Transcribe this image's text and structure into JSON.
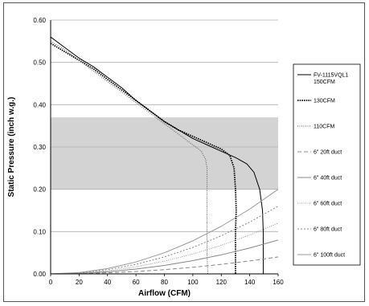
{
  "chart_data": {
    "type": "line",
    "title": "",
    "xlabel": "Airflow (CFM)",
    "ylabel": "Static Pressure (inch w.g.)",
    "xlim": [
      0,
      160
    ],
    "ylim": [
      0,
      0.6
    ],
    "xticks": [
      "0",
      "20",
      "40",
      "60",
      "80",
      "100",
      "120",
      "140",
      "160"
    ],
    "yticks": [
      "0.00",
      "0.10",
      "0.20",
      "0.30",
      "0.40",
      "0.50",
      "0.60"
    ],
    "grid": "horizontal",
    "legend_position": "right",
    "shaded_band": {
      "y_from": 0.2,
      "y_to": 0.37,
      "color": "#d3d3d3"
    },
    "series": [
      {
        "name": "FV-1115VQL1 150CFM",
        "style": "solid",
        "color": "#000000",
        "group": "fan",
        "points": [
          [
            0,
            0.56
          ],
          [
            10,
            0.535
          ],
          [
            20,
            0.51
          ],
          [
            30,
            0.49
          ],
          [
            40,
            0.465
          ],
          [
            50,
            0.44
          ],
          [
            60,
            0.41
          ],
          [
            70,
            0.385
          ],
          [
            80,
            0.36
          ],
          [
            90,
            0.34
          ],
          [
            100,
            0.32
          ],
          [
            110,
            0.305
          ],
          [
            120,
            0.29
          ],
          [
            130,
            0.275
          ],
          [
            138,
            0.26
          ],
          [
            143,
            0.24
          ],
          [
            147,
            0.2
          ],
          [
            149,
            0.15
          ],
          [
            149.5,
            0.1
          ],
          [
            149.5,
            0.05
          ],
          [
            149.5,
            0
          ]
        ]
      },
      {
        "name": "130CFM",
        "style": "dotted-bold",
        "color": "#000000",
        "group": "fan",
        "points": [
          [
            0,
            0.545
          ],
          [
            10,
            0.525
          ],
          [
            20,
            0.505
          ],
          [
            30,
            0.485
          ],
          [
            40,
            0.46
          ],
          [
            50,
            0.435
          ],
          [
            60,
            0.41
          ],
          [
            70,
            0.385
          ],
          [
            80,
            0.36
          ],
          [
            90,
            0.34
          ],
          [
            100,
            0.325
          ],
          [
            110,
            0.31
          ],
          [
            120,
            0.295
          ],
          [
            126,
            0.28
          ],
          [
            129,
            0.25
          ],
          [
            130,
            0.2
          ],
          [
            130.5,
            0.15
          ],
          [
            130,
            0.1
          ],
          [
            130,
            0.05
          ],
          [
            130,
            0
          ]
        ]
      },
      {
        "name": "110CFM",
        "style": "dotted",
        "color": "#555555",
        "group": "fan",
        "points": [
          [
            0,
            0.55
          ],
          [
            10,
            0.53
          ],
          [
            20,
            0.505
          ],
          [
            30,
            0.48
          ],
          [
            40,
            0.455
          ],
          [
            50,
            0.43
          ],
          [
            60,
            0.405
          ],
          [
            70,
            0.38
          ],
          [
            80,
            0.355
          ],
          [
            90,
            0.33
          ],
          [
            100,
            0.305
          ],
          [
            106,
            0.29
          ],
          [
            109,
            0.27
          ],
          [
            110,
            0.25
          ],
          [
            110,
            0.2
          ],
          [
            110,
            0.15
          ],
          [
            110,
            0.1
          ],
          [
            110,
            0.05
          ],
          [
            110.5,
            0
          ]
        ]
      },
      {
        "name": "6\" 20ft duct",
        "style": "dashed",
        "color": "#888888",
        "group": "duct",
        "points": [
          [
            0,
            0
          ],
          [
            20,
            0.0006
          ],
          [
            40,
            0.0025
          ],
          [
            60,
            0.0056
          ],
          [
            80,
            0.01
          ],
          [
            100,
            0.0156
          ],
          [
            120,
            0.0225
          ],
          [
            140,
            0.0306
          ],
          [
            160,
            0.04
          ]
        ]
      },
      {
        "name": "6\" 40ft duct",
        "style": "solid",
        "color": "#888888",
        "group": "duct",
        "points": [
          [
            0,
            0
          ],
          [
            20,
            0.0013
          ],
          [
            40,
            0.005
          ],
          [
            60,
            0.0113
          ],
          [
            80,
            0.02
          ],
          [
            100,
            0.0313
          ],
          [
            120,
            0.045
          ],
          [
            140,
            0.0613
          ],
          [
            160,
            0.08
          ]
        ]
      },
      {
        "name": "6\" 60ft duct",
        "style": "dotted",
        "color": "#999999",
        "group": "duct",
        "points": [
          [
            0,
            0
          ],
          [
            20,
            0.0019
          ],
          [
            40,
            0.0075
          ],
          [
            60,
            0.0169
          ],
          [
            80,
            0.03
          ],
          [
            100,
            0.0469
          ],
          [
            120,
            0.0675
          ],
          [
            140,
            0.0919
          ],
          [
            160,
            0.12
          ]
        ]
      },
      {
        "name": "6\" 80ft duct",
        "style": "dashed-fine",
        "color": "#888888",
        "group": "duct",
        "points": [
          [
            0,
            0
          ],
          [
            20,
            0.0025
          ],
          [
            40,
            0.01
          ],
          [
            60,
            0.0225
          ],
          [
            80,
            0.04
          ],
          [
            100,
            0.0625
          ],
          [
            120,
            0.09
          ],
          [
            140,
            0.1225
          ],
          [
            160,
            0.16
          ]
        ]
      },
      {
        "name": "6\" 100ft duct",
        "style": "solid",
        "color": "#999999",
        "group": "duct",
        "points": [
          [
            0,
            0
          ],
          [
            20,
            0.0031
          ],
          [
            40,
            0.0125
          ],
          [
            60,
            0.0281
          ],
          [
            80,
            0.05
          ],
          [
            100,
            0.0781
          ],
          [
            120,
            0.1125
          ],
          [
            140,
            0.1531
          ],
          [
            160,
            0.2
          ]
        ]
      }
    ],
    "legend": [
      {
        "line1": "FV-1115VQL1",
        "line2": "150CFM",
        "style": "solid",
        "color": "#000000"
      },
      {
        "line1": "130CFM",
        "line2": "",
        "style": "dotted-bold",
        "color": "#000000"
      },
      {
        "line1": "110CFM",
        "line2": "",
        "style": "dotted",
        "color": "#555555"
      },
      {
        "line1": "6\" 20ft duct",
        "line2": "",
        "style": "dashed",
        "color": "#888888"
      },
      {
        "line1": "6\" 40ft duct",
        "line2": "",
        "style": "solid",
        "color": "#888888"
      },
      {
        "line1": "6\" 60ft duct",
        "line2": "",
        "style": "dotted",
        "color": "#999999"
      },
      {
        "line1": "6\" 80ft duct",
        "line2": "",
        "style": "dashed-fine",
        "color": "#888888"
      },
      {
        "line1": "6\" 100ft duct",
        "line2": "",
        "style": "solid",
        "color": "#999999"
      }
    ]
  }
}
